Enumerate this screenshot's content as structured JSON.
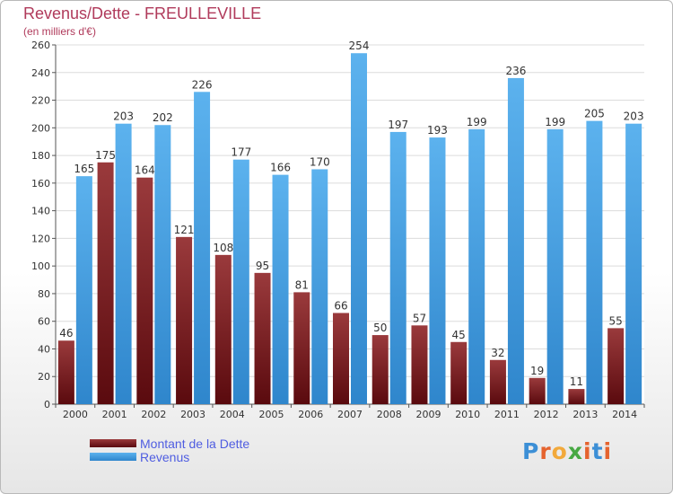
{
  "header": {
    "title": "Revenus/Dette - FREULLEVILLE",
    "subtitle": "(en milliers d'€)"
  },
  "chart_data": {
    "type": "bar",
    "title": "Revenus/Dette - FREULLEVILLE",
    "subtitle": "(en milliers d'€)",
    "xlabel": "",
    "ylabel": "",
    "ylim": [
      0,
      260
    ],
    "yticks": [
      0,
      20,
      40,
      60,
      80,
      100,
      120,
      140,
      160,
      180,
      200,
      220,
      240,
      260
    ],
    "grid": true,
    "legend_position": "bottom-left",
    "categories": [
      "2000",
      "2001",
      "2002",
      "2003",
      "2004",
      "2005",
      "2006",
      "2007",
      "2008",
      "2009",
      "2010",
      "2011",
      "2012",
      "2013",
      "2014"
    ],
    "series": [
      {
        "name": "Montant de la Dette",
        "color": "#7a1e22",
        "values": [
          46,
          175,
          164,
          121,
          108,
          95,
          81,
          66,
          50,
          57,
          45,
          32,
          19,
          11,
          55
        ]
      },
      {
        "name": "Revenus",
        "color": "#4fa6e4",
        "values": [
          165,
          203,
          202,
          226,
          177,
          166,
          170,
          254,
          197,
          193,
          199,
          236,
          199,
          205,
          203
        ]
      }
    ]
  },
  "legend": {
    "items": [
      {
        "label": "Montant de la Dette",
        "color": "#7a1e22"
      },
      {
        "label": "Revenus",
        "color": "#4fa6e4"
      }
    ]
  },
  "logo": {
    "text": "Proxiti",
    "colors": [
      "#3c8fd6",
      "#e5632e",
      "#f2a93b",
      "#47a843",
      "#e5632e",
      "#3c8fd6",
      "#e5632e"
    ]
  }
}
